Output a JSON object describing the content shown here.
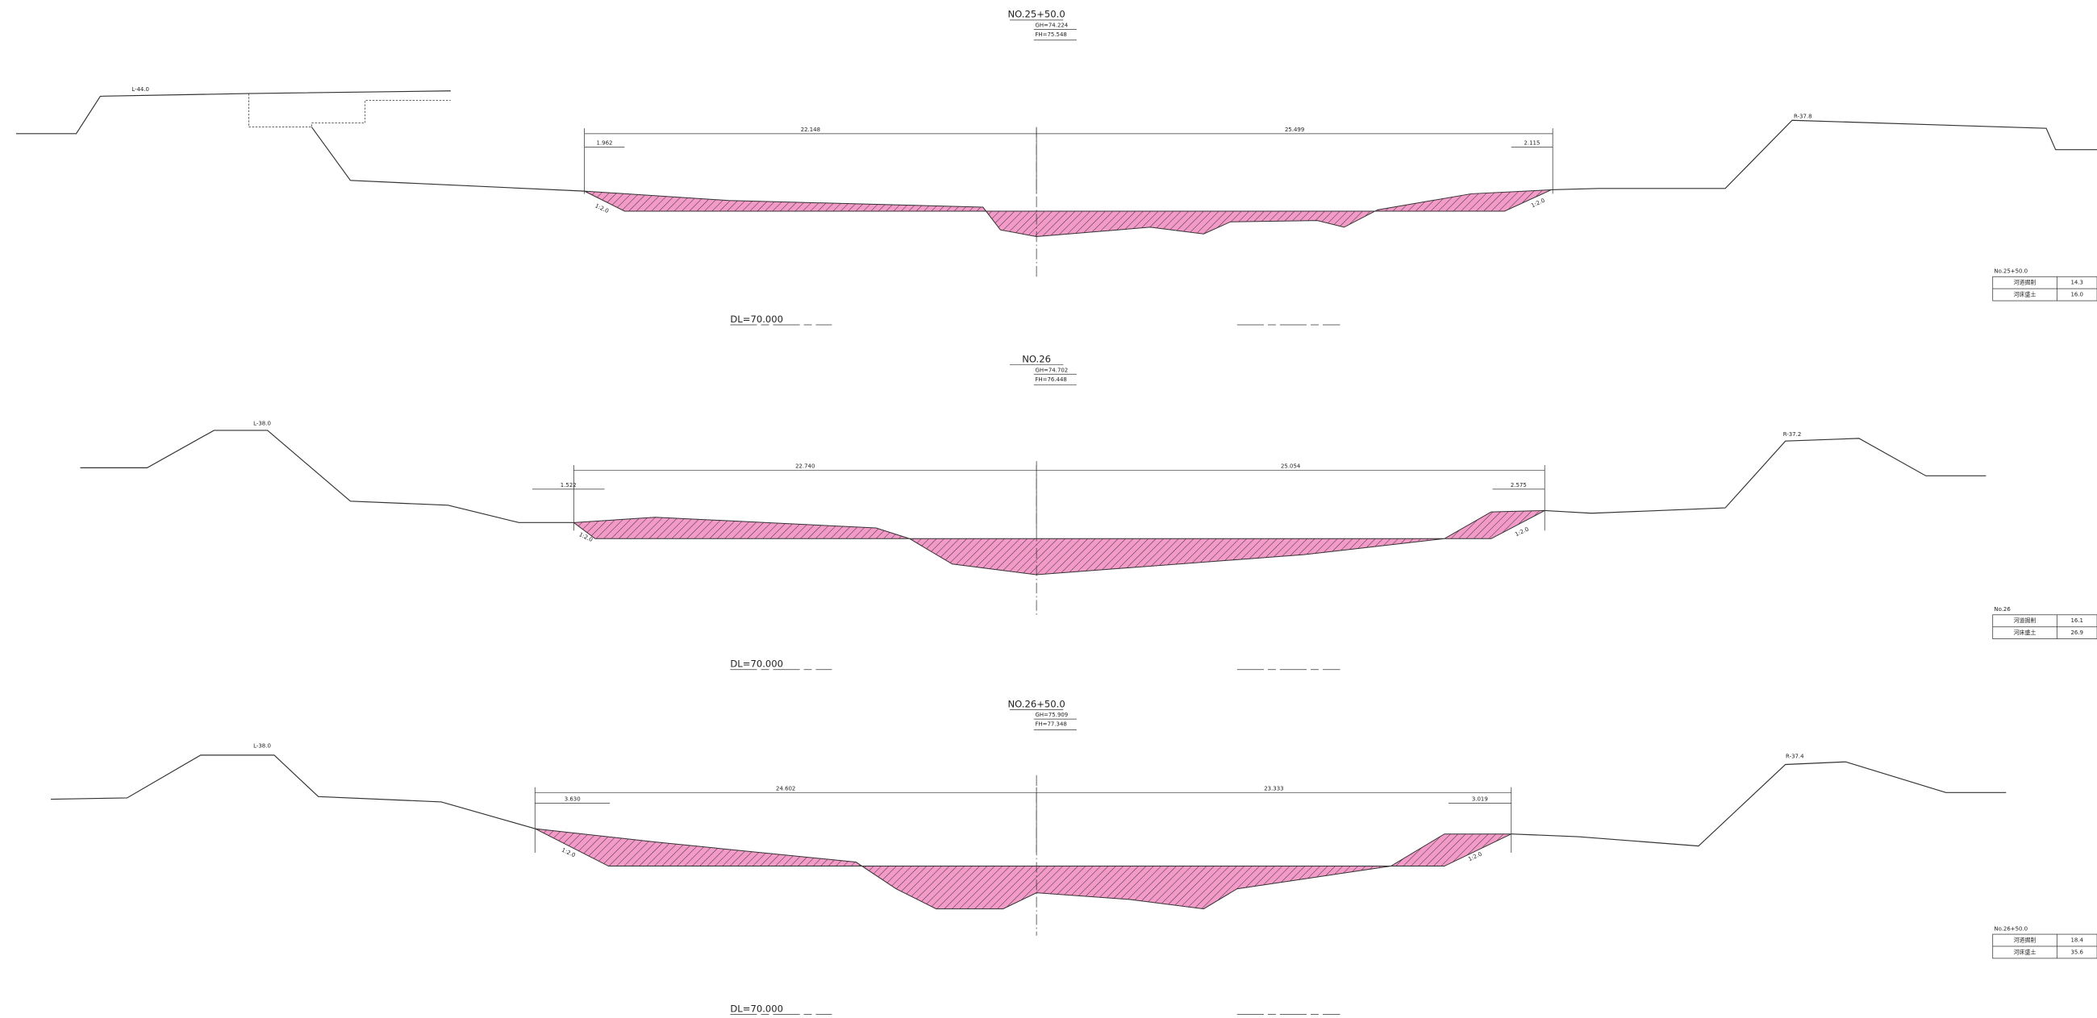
{
  "sections": [
    {
      "title": "NO.25+50.0",
      "gh": "GH=74.224",
      "fh": "FH=75.548",
      "left_label": "L-44.0",
      "right_label": "R-37.8",
      "dims": [
        "22.148",
        "25.499",
        "1.962",
        "2.115"
      ],
      "slope_labels": [
        "1:2.0",
        "1:2.0"
      ],
      "datum": "DL=70.000",
      "table": {
        "station": "No.25+50.0",
        "rows": [
          [
            "河道掘削",
            "14.3"
          ],
          [
            "河床盛土",
            "16.0"
          ]
        ]
      }
    },
    {
      "title": "NO.26",
      "gh": "GH=74.702",
      "fh": "FH=76.448",
      "left_label": "L-38.0",
      "right_label": "R-37.2",
      "dims": [
        "22.740",
        "25.054",
        "1.522",
        "2.575"
      ],
      "slope_labels": [
        "1:2.0",
        "1:2.0"
      ],
      "datum": "DL=70.000",
      "table": {
        "station": "No.26",
        "rows": [
          [
            "河道掘削",
            "16.1"
          ],
          [
            "河床盛土",
            "26.9"
          ]
        ]
      }
    },
    {
      "title": "NO.26+50.0",
      "gh": "GH=75.909",
      "fh": "FH=77.348",
      "left_label": "L-38.0",
      "right_label": "R-37.4",
      "dims": [
        "24.602",
        "23.333",
        "3.630",
        "3.019"
      ],
      "slope_labels": [
        "1:2.0",
        "1:2.0"
      ],
      "datum": "DL=70.000",
      "table": {
        "station": "No.26+50.0",
        "rows": [
          [
            "河道掘削",
            "18.4"
          ],
          [
            "河床盛土",
            "35.6"
          ]
        ]
      }
    }
  ]
}
